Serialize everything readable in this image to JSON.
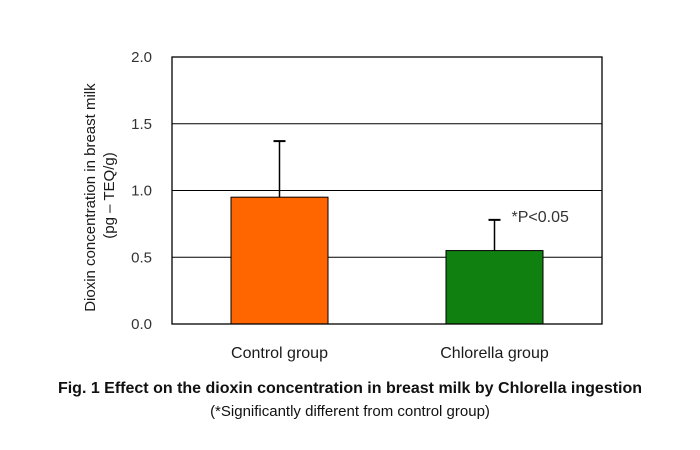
{
  "chart_data": {
    "type": "bar",
    "title": "Fig. 1 Effect on the dioxin concentration in breast milk by Chlorella ingestion",
    "subtitle": "(*Significantly different from control group)",
    "ylabel_lines": [
      "Dioxin concentration in breast milk",
      "(pg – TEQ/g)"
    ],
    "xlabel": "",
    "categories": [
      "Control group",
      "Chlorella group"
    ],
    "values": [
      0.95,
      0.55
    ],
    "error_upper": [
      1.37,
      0.78
    ],
    "colors": [
      "#ff6600",
      "#108010"
    ],
    "ylim": [
      0,
      2.0
    ],
    "yticks": [
      "0.0",
      "0.5",
      "1.0",
      "1.5",
      "2.0"
    ],
    "grid": true,
    "annotation": "*P<0.05"
  }
}
